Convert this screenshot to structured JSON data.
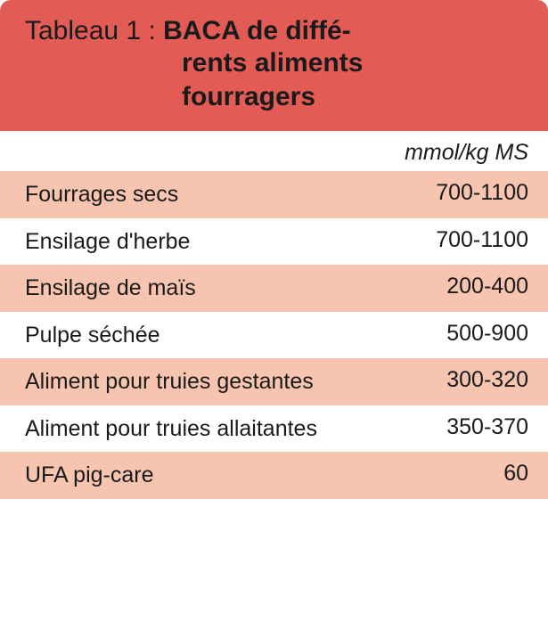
{
  "colors": {
    "header_bg": "#e25b55",
    "row_shade": "#f6c4af",
    "row_plain": "#ffffff",
    "text": "#1a1a1a"
  },
  "header": {
    "prefix": "Tableau 1 : ",
    "title_line1": "BACA de diffé-",
    "title_line2": "rents aliments",
    "title_line3": "fourragers"
  },
  "unit_label": "mmol/kg MS",
  "rows": [
    {
      "label": "Fourrages secs",
      "value": "700-1100"
    },
    {
      "label": "Ensilage d'herbe",
      "value": "700-1100"
    },
    {
      "label": "Ensilage de maïs",
      "value": "200-400"
    },
    {
      "label": "Pulpe séchée",
      "value": "500-900"
    },
    {
      "label": "Aliment pour truies gestantes",
      "value": "300-320"
    },
    {
      "label": "Aliment pour truies allaitantes",
      "value": "350-370"
    },
    {
      "label": "UFA pig-care",
      "value": "60"
    }
  ],
  "typography": {
    "header_fontsize": 30,
    "body_fontsize": 25
  }
}
